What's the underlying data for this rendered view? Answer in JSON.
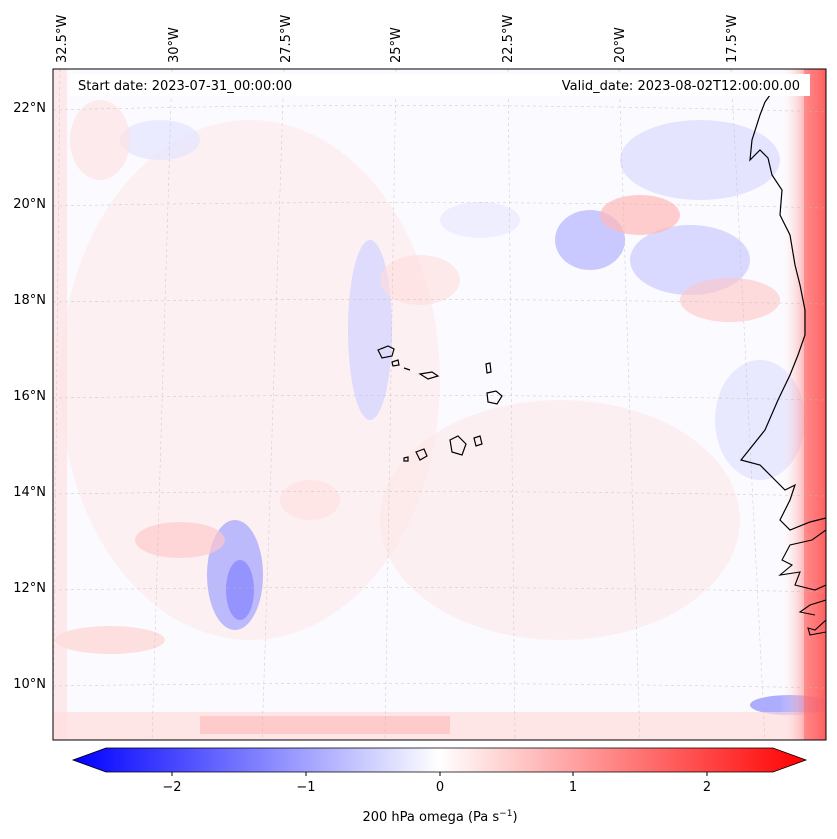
{
  "header": {
    "start_date": "Start date: 2023-07-31_00:00:00",
    "valid_date": "Valid_date: 2023-08-02T12:00:00.00"
  },
  "map": {
    "lon_labels": [
      "32.5°W",
      "30°W",
      "27.5°W",
      "25°W",
      "22.5°W",
      "20°W",
      "17.5°W"
    ],
    "lat_labels": [
      "22°N",
      "20°N",
      "18°N",
      "16°N",
      "14°N",
      "12°N",
      "10°N"
    ],
    "gridlines": "dashed light grey",
    "field": "200 hPa omega, near zero over most of the domain with small-scale positive (red) and negative (blue) patches; strong positive band along the eastern edge near the African coast",
    "features": [
      "Cape Verde islands",
      "West African coastline"
    ]
  },
  "colorbar": {
    "ticks": [
      "−2",
      "−1",
      "0",
      "1",
      "2"
    ],
    "label_text": "200 hPa omega (Pa s",
    "label_exp": "−1",
    "label_close": ")",
    "range": [
      -2.6,
      2.6
    ],
    "extend": "both",
    "colormap": "bwr",
    "color_min": "#0000ff",
    "color_mid": "#ffffff",
    "color_max": "#ff0000"
  }
}
